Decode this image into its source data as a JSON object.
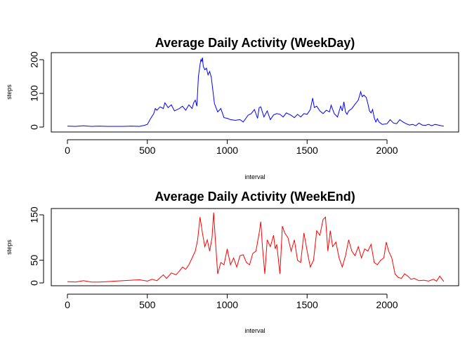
{
  "chart_data": [
    {
      "type": "line",
      "title": "Average Daily Activity (WeekDay)",
      "xlabel": "interval",
      "ylabel": "steps",
      "xlim": [
        0,
        2355
      ],
      "ylim": [
        0,
        210
      ],
      "xticks": [
        0,
        500,
        1000,
        1500,
        2000
      ],
      "yticks": [
        0,
        100,
        200
      ],
      "color": "#0000ff",
      "series": [
        {
          "x": [
            0,
            50,
            100,
            150,
            200,
            250,
            300,
            350,
            400,
            450,
            480,
            500,
            520,
            540,
            550,
            560,
            580,
            600,
            610,
            630,
            650,
            670,
            700,
            720,
            740,
            760,
            780,
            790,
            800,
            810,
            820,
            830,
            835,
            840,
            845,
            850,
            860,
            870,
            880,
            890,
            900,
            920,
            940,
            960,
            980,
            1000,
            1020,
            1050,
            1080,
            1100,
            1130,
            1150,
            1170,
            1190,
            1200,
            1210,
            1230,
            1250,
            1270,
            1290,
            1310,
            1330,
            1350,
            1370,
            1400,
            1420,
            1440,
            1460,
            1480,
            1500,
            1520,
            1535,
            1545,
            1560,
            1580,
            1600,
            1620,
            1640,
            1650,
            1670,
            1690,
            1710,
            1720,
            1730,
            1740,
            1750,
            1760,
            1780,
            1800,
            1820,
            1835,
            1845,
            1855,
            1870,
            1880,
            1890,
            1900,
            1910,
            1920,
            1930,
            1940,
            1950,
            1970,
            2000,
            2020,
            2040,
            2060,
            2080,
            2100,
            2120,
            2140,
            2160,
            2180,
            2200,
            2220,
            2240,
            2260,
            2280,
            2300,
            2320,
            2340,
            2355
          ],
          "y": [
            3,
            2,
            4,
            2,
            3,
            2,
            2,
            2,
            3,
            2,
            5,
            8,
            25,
            40,
            55,
            50,
            60,
            55,
            72,
            58,
            66,
            48,
            55,
            62,
            50,
            66,
            55,
            72,
            80,
            62,
            150,
            185,
            200,
            195,
            206,
            180,
            170,
            175,
            155,
            165,
            148,
            70,
            45,
            55,
            28,
            26,
            22,
            20,
            22,
            15,
            35,
            40,
            52,
            26,
            58,
            60,
            30,
            48,
            22,
            36,
            40,
            38,
            30,
            42,
            35,
            28,
            38,
            30,
            40,
            38,
            52,
            86,
            58,
            62,
            48,
            40,
            50,
            45,
            65,
            40,
            30,
            62,
            48,
            75,
            45,
            38,
            48,
            55,
            68,
            80,
            105,
            90,
            95,
            88,
            70,
            48,
            42,
            52,
            28,
            15,
            25,
            15,
            8,
            10,
            22,
            12,
            10,
            22,
            15,
            10,
            6,
            8,
            4,
            12,
            6,
            5,
            8,
            4,
            8,
            6,
            4,
            3
          ]
        }
      ]
    },
    {
      "type": "line",
      "title": "Average Daily Activity (WeekEnd)",
      "xlabel": "interval",
      "ylabel": "steps",
      "xlim": [
        0,
        2355
      ],
      "ylim": [
        0,
        160
      ],
      "xticks": [
        0,
        500,
        1000,
        1500,
        2000
      ],
      "yticks": [
        0,
        50,
        150
      ],
      "color": "#ff0000",
      "series": [
        {
          "x": [
            0,
            50,
            100,
            150,
            200,
            250,
            300,
            350,
            400,
            450,
            500,
            530,
            560,
            600,
            620,
            650,
            680,
            700,
            720,
            740,
            760,
            780,
            800,
            815,
            830,
            845,
            860,
            875,
            890,
            905,
            915,
            925,
            940,
            960,
            980,
            1000,
            1020,
            1040,
            1060,
            1080,
            1100,
            1120,
            1140,
            1160,
            1180,
            1200,
            1210,
            1220,
            1235,
            1250,
            1270,
            1290,
            1300,
            1310,
            1330,
            1345,
            1360,
            1380,
            1400,
            1420,
            1440,
            1460,
            1480,
            1500,
            1520,
            1540,
            1560,
            1580,
            1600,
            1615,
            1630,
            1645,
            1660,
            1680,
            1700,
            1720,
            1740,
            1760,
            1780,
            1800,
            1820,
            1840,
            1860,
            1880,
            1900,
            1920,
            1940,
            1960,
            1980,
            1995,
            2010,
            2030,
            2050,
            2070,
            2090,
            2110,
            2130,
            2150,
            2170,
            2200,
            2230,
            2260,
            2290,
            2310,
            2330,
            2355
          ],
          "y": [
            3,
            2,
            5,
            2,
            2,
            3,
            4,
            5,
            6,
            7,
            4,
            8,
            5,
            18,
            10,
            22,
            18,
            26,
            35,
            30,
            40,
            55,
            70,
            95,
            145,
            110,
            80,
            95,
            70,
            100,
            155,
            100,
            20,
            45,
            40,
            75,
            40,
            55,
            35,
            60,
            62,
            45,
            40,
            65,
            70,
            110,
            135,
            80,
            20,
            95,
            80,
            105,
            75,
            85,
            20,
            125,
            110,
            100,
            70,
            95,
            50,
            45,
            110,
            70,
            35,
            50,
            115,
            105,
            140,
            145,
            70,
            115,
            80,
            90,
            55,
            35,
            60,
            95,
            70,
            60,
            80,
            55,
            75,
            70,
            85,
            45,
            40,
            50,
            55,
            90,
            70,
            55,
            20,
            12,
            10,
            20,
            15,
            8,
            10,
            5,
            6,
            4,
            8,
            4,
            15,
            3
          ]
        }
      ]
    }
  ]
}
